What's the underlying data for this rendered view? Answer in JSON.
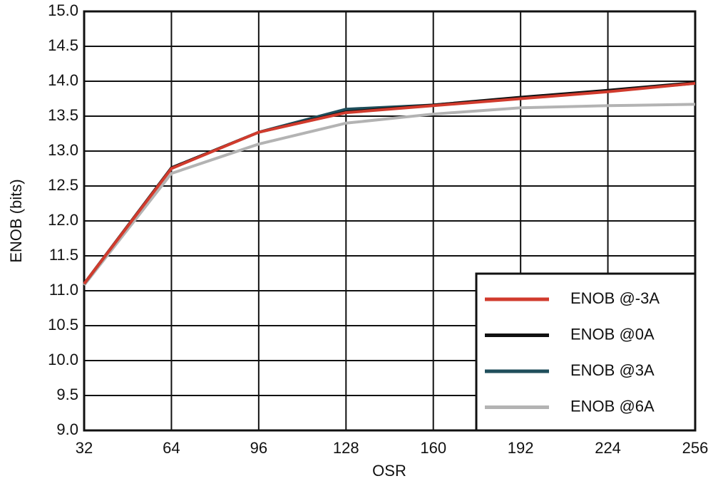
{
  "chart_data": {
    "type": "line",
    "x_label": "OSR",
    "y_label": "ENOB (bits)",
    "x": [
      32,
      64,
      96,
      128,
      160,
      192,
      224,
      256
    ],
    "series": [
      {
        "name": "ENOB @-3A",
        "color": "#d13b2d",
        "values": [
          11.1,
          12.75,
          13.27,
          13.55,
          13.65,
          13.75,
          13.85,
          13.97
        ]
      },
      {
        "name": "ENOB @0A",
        "color": "#111111",
        "values": [
          11.1,
          12.76,
          13.27,
          13.56,
          13.66,
          13.77,
          13.87,
          13.98
        ]
      },
      {
        "name": "ENOB @3A",
        "color": "#1f4e5b",
        "values": [
          11.1,
          12.76,
          13.27,
          13.6,
          13.66,
          13.76,
          13.86,
          13.97
        ]
      },
      {
        "name": "ENOB @6A",
        "color": "#b3b3b3",
        "values": [
          11.08,
          12.68,
          13.1,
          13.4,
          13.53,
          13.62,
          13.65,
          13.67
        ]
      }
    ],
    "xlim": [
      32,
      256
    ],
    "xticks": [
      32,
      64,
      96,
      128,
      160,
      192,
      224,
      256
    ],
    "ylim": [
      9,
      15
    ],
    "yticks": [
      {
        "value": 9,
        "label": "9.0"
      },
      9.5,
      {
        "value": 10,
        "label": "10.0"
      },
      10.5,
      {
        "value": 11,
        "label": "11.0"
      },
      11.5,
      {
        "value": 12,
        "label": "12.0"
      },
      12.5,
      {
        "value": 13,
        "label": "13.0"
      },
      13.5,
      {
        "value": 14,
        "label": "14.0"
      },
      14.5,
      {
        "value": 15,
        "label": "15.0"
      }
    ],
    "grid": true,
    "legend": "lower right"
  }
}
